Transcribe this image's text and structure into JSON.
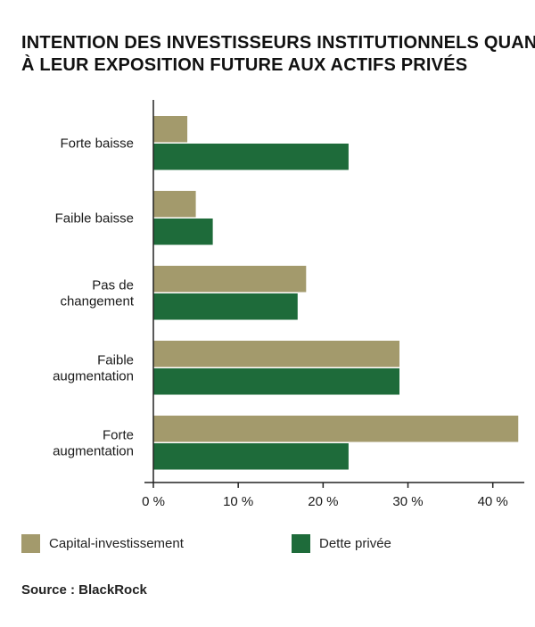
{
  "title_lines": [
    "INTENTION DES INVESTISSEURS INSTITUTIONNELS QUANT",
    "À LEUR EXPOSITION FUTURE AUX ACTIFS PRIVÉS"
  ],
  "source": "Source : BlackRock",
  "colors": {
    "capital": "#a39a6c",
    "dette": "#1e6b3a",
    "axis": "#222222"
  },
  "chart_data": {
    "type": "bar",
    "orientation": "horizontal",
    "categories": [
      [
        "Forte baisse"
      ],
      [
        "Faible baisse"
      ],
      [
        "Pas de",
        "changement"
      ],
      [
        "Faible",
        "augmentation"
      ],
      [
        "Forte",
        "augmentation"
      ]
    ],
    "series": [
      {
        "name": "Capital-investissement",
        "values": [
          4,
          5,
          18,
          29,
          43
        ]
      },
      {
        "name": "Dette privée",
        "values": [
          23,
          7,
          17,
          29,
          23
        ]
      }
    ],
    "xlim": [
      0,
      43.5
    ],
    "xticks": [
      0,
      10,
      20,
      30,
      40
    ],
    "xtick_labels": [
      "0 %",
      "10 %",
      "20 %",
      "30 %",
      "40 %"
    ],
    "grid": false,
    "legend_position": "bottom"
  }
}
